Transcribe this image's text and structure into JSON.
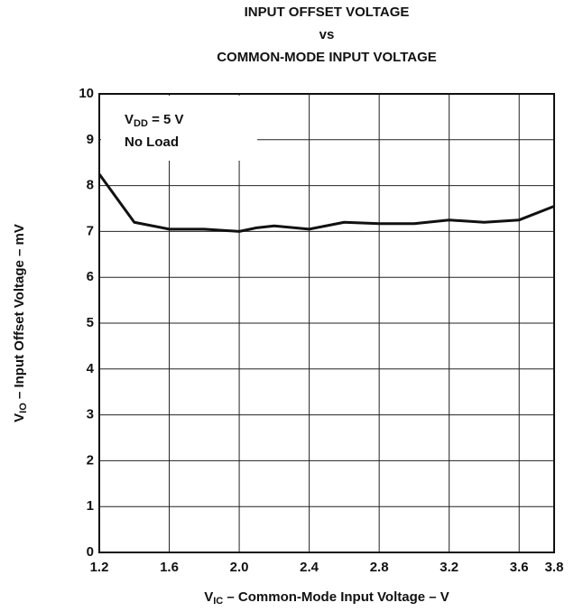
{
  "chart_data": {
    "type": "line",
    "title": [
      "INPUT OFFSET VOLTAGE",
      "vs",
      "COMMON-MODE INPUT VOLTAGE"
    ],
    "xlabel": [
      "V",
      "IC",
      " – Common-Mode Input Voltage – V"
    ],
    "ylabel": [
      "V",
      "IO",
      " – Input Offset Voltage – mV"
    ],
    "annotation": [
      [
        "V",
        "DD",
        " = 5 V"
      ],
      "No Load"
    ],
    "x": [
      1.2,
      1.4,
      1.6,
      1.8,
      2.0,
      2.1,
      2.2,
      2.4,
      2.6,
      2.8,
      3.0,
      3.2,
      3.4,
      3.6,
      3.8
    ],
    "series": [
      {
        "color": "#111111",
        "values": [
          8.25,
          7.2,
          7.05,
          7.05,
          7.0,
          7.08,
          7.12,
          7.05,
          7.2,
          7.17,
          7.17,
          7.25,
          7.2,
          7.25,
          7.55
        ]
      }
    ],
    "xlim": [
      1.2,
      3.8
    ],
    "xticks": [
      1.2,
      1.6,
      {
        "value": 2,
        "label": "2.0"
      },
      2.4,
      2.8,
      3.2,
      3.6,
      3.8
    ],
    "ylim": [
      0,
      10
    ],
    "yticks": [
      0,
      1,
      2,
      3,
      4,
      5,
      6,
      7,
      8,
      9,
      10
    ],
    "grid": true
  }
}
